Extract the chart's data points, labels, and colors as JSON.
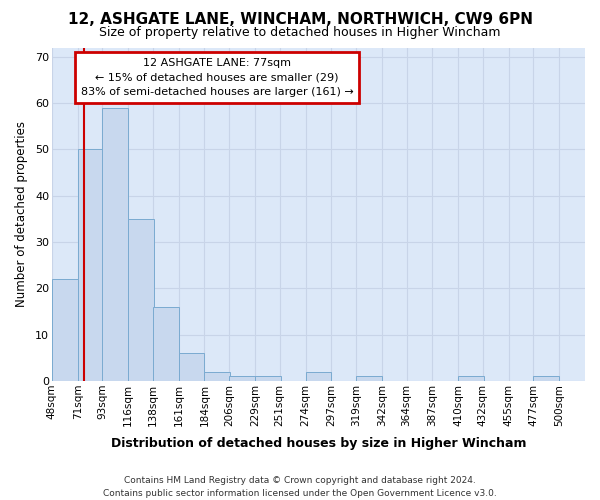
{
  "title": "12, ASHGATE LANE, WINCHAM, NORTHWICH, CW9 6PN",
  "subtitle": "Size of property relative to detached houses in Higher Wincham",
  "xlabel": "Distribution of detached houses by size in Higher Wincham",
  "ylabel": "Number of detached properties",
  "bin_labels": [
    "48sqm",
    "71sqm",
    "93sqm",
    "116sqm",
    "138sqm",
    "161sqm",
    "184sqm",
    "206sqm",
    "229sqm",
    "251sqm",
    "274sqm",
    "297sqm",
    "319sqm",
    "342sqm",
    "364sqm",
    "387sqm",
    "410sqm",
    "432sqm",
    "455sqm",
    "477sqm",
    "500sqm"
  ],
  "bin_starts": [
    48,
    71,
    93,
    116,
    138,
    161,
    184,
    206,
    229,
    251,
    274,
    297,
    319,
    342,
    364,
    387,
    410,
    432,
    455,
    477,
    500
  ],
  "bin_width": 23,
  "bar_heights": [
    22,
    50,
    59,
    35,
    16,
    6,
    2,
    1,
    1,
    0,
    2,
    0,
    1,
    0,
    0,
    0,
    1,
    0,
    0,
    1,
    0
  ],
  "bar_color": "#c8d8ee",
  "bar_edge_color": "#7aaad0",
  "ylim": [
    0,
    72
  ],
  "yticks": [
    0,
    10,
    20,
    30,
    40,
    50,
    60,
    70
  ],
  "xlim_min": 48,
  "xlim_max": 523,
  "vline_x": 77,
  "vline_color": "#cc0000",
  "annotation_line1": "12 ASHGATE LANE: 77sqm",
  "annotation_line2": "← 15% of detached houses are smaller (29)",
  "annotation_line3": "83% of semi-detached houses are larger (161) →",
  "annotation_box_fc": "#ffffff",
  "annotation_box_ec": "#cc0000",
  "grid_color": "#c8d4e8",
  "plot_bg_color": "#dce8f8",
  "fig_bg_color": "#ffffff",
  "footer_line1": "Contains HM Land Registry data © Crown copyright and database right 2024.",
  "footer_line2": "Contains public sector information licensed under the Open Government Licence v3.0."
}
